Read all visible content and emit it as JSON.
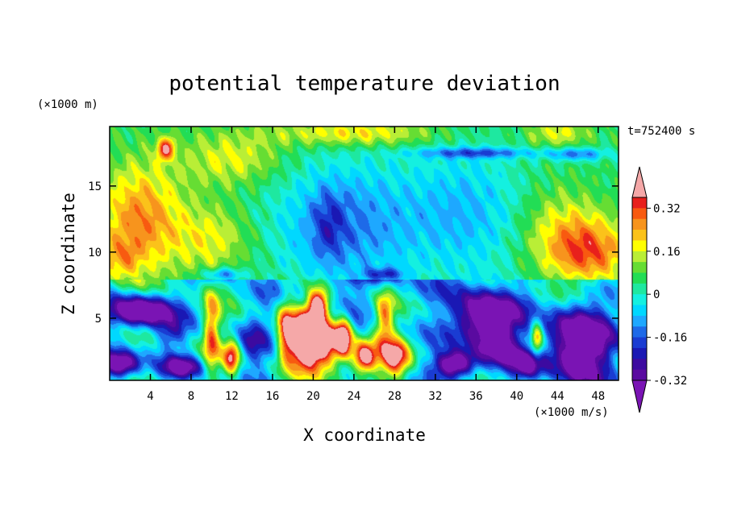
{
  "chart_data": {
    "type": "heatmap",
    "title": "potential temperature deviation",
    "xlabel": "X coordinate",
    "ylabel": "Z coordinate",
    "x_unit": "(×1000 m/s)",
    "y_unit": "(×1000 m)",
    "time_label": "t=752400 s",
    "xlim": [
      0,
      50
    ],
    "ylim": [
      0.3,
      19.5
    ],
    "x_ticks": [
      4,
      8,
      12,
      16,
      20,
      24,
      28,
      32,
      36,
      40,
      44,
      48
    ],
    "y_ticks": [
      5,
      10,
      15
    ],
    "colorbar": {
      "tick_labels": [
        "0.32",
        "0.16",
        "0",
        "-0.16",
        "-0.32"
      ],
      "tick_values": [
        0.32,
        0.16,
        0,
        -0.16,
        -0.32
      ],
      "range": [
        -0.4,
        0.4
      ],
      "levels": [
        {
          "from": 0.36,
          "to": 0.4,
          "color": "#f5a8a8"
        },
        {
          "from": 0.32,
          "to": 0.36,
          "color": "#e8201c"
        },
        {
          "from": 0.28,
          "to": 0.32,
          "color": "#f85a10"
        },
        {
          "from": 0.24,
          "to": 0.28,
          "color": "#f7941d"
        },
        {
          "from": 0.2,
          "to": 0.24,
          "color": "#fbc21a"
        },
        {
          "from": 0.16,
          "to": 0.2,
          "color": "#ffff00"
        },
        {
          "from": 0.12,
          "to": 0.16,
          "color": "#b9ee36"
        },
        {
          "from": 0.08,
          "to": 0.12,
          "color": "#66dd33"
        },
        {
          "from": 0.04,
          "to": 0.08,
          "color": "#22dd55"
        },
        {
          "from": 0,
          "to": 0.04,
          "color": "#1ee8a0"
        },
        {
          "from": -0.04,
          "to": 0,
          "color": "#14f0e0"
        },
        {
          "from": -0.08,
          "to": -0.04,
          "color": "#00d8ff"
        },
        {
          "from": -0.12,
          "to": -0.08,
          "color": "#1ea8ff"
        },
        {
          "from": -0.16,
          "to": -0.12,
          "color": "#1e6ae8"
        },
        {
          "from": -0.2,
          "to": -0.16,
          "color": "#1a3cd2"
        },
        {
          "from": -0.24,
          "to": -0.2,
          "color": "#1a18b4"
        },
        {
          "from": -0.28,
          "to": -0.24,
          "color": "#3c0aa0"
        },
        {
          "from": -0.32,
          "to": -0.28,
          "color": "#5a0aa0"
        },
        {
          "from": -0.4,
          "to": -0.32,
          "color": "#7a14b4"
        }
      ]
    },
    "field": {
      "background_value": 0.05,
      "features": [
        {
          "x": 3,
          "z": 12.5,
          "sx": 4,
          "sz": 4,
          "amp": 0.22
        },
        {
          "x": 1,
          "z": 9.5,
          "sx": 2,
          "sz": 1.5,
          "amp": 0.12
        },
        {
          "x": 12,
          "z": 17,
          "sx": 5,
          "sz": 2,
          "amp": 0.12
        },
        {
          "x": 10,
          "z": 11,
          "sx": 4,
          "sz": 2.5,
          "amp": 0.12
        },
        {
          "x": 24,
          "z": 19,
          "sx": 8,
          "sz": 1,
          "amp": 0.16
        },
        {
          "x": 44,
          "z": 19,
          "sx": 3,
          "sz": 1,
          "amp": 0.12
        },
        {
          "x": 47,
          "z": 10,
          "sx": 4,
          "sz": 2.5,
          "amp": 0.25
        },
        {
          "x": 44,
          "z": 12,
          "sx": 4,
          "sz": 3,
          "amp": 0.1
        },
        {
          "x": 5.5,
          "z": 17.8,
          "sx": 0.8,
          "sz": 0.8,
          "amp": 0.3
        },
        {
          "x": 23,
          "z": 12,
          "sx": 7,
          "sz": 5,
          "amp": -0.18
        },
        {
          "x": 35,
          "z": 13,
          "sx": 6,
          "sz": 5,
          "amp": -0.13
        },
        {
          "x": 21.5,
          "z": 12,
          "sx": 1.5,
          "sz": 2.5,
          "amp": -0.1
        },
        {
          "x": 36,
          "z": 17.5,
          "sx": 6,
          "sz": 0.4,
          "amp": -0.18
        },
        {
          "x": 46,
          "z": 17.4,
          "sx": 3,
          "sz": 0.5,
          "amp": -0.18
        },
        {
          "x": 11,
          "z": 8.3,
          "sx": 2,
          "sz": 0.5,
          "amp": -0.2
        },
        {
          "x": 27,
          "z": 8.3,
          "sx": 2,
          "sz": 0.5,
          "amp": -0.2
        },
        {
          "x": 3,
          "z": 5.5,
          "sx": 3,
          "sz": 1.2,
          "amp": -0.5
        },
        {
          "x": 1,
          "z": 1.5,
          "sx": 2,
          "sz": 1,
          "amp": -0.45
        },
        {
          "x": 7,
          "z": 1.3,
          "sx": 2,
          "sz": 0.8,
          "amp": -0.3
        },
        {
          "x": 37,
          "z": 5,
          "sx": 3,
          "sz": 2,
          "amp": -0.5
        },
        {
          "x": 46,
          "z": 3,
          "sx": 3,
          "sz": 3,
          "amp": -0.5
        },
        {
          "x": 34,
          "z": 1.5,
          "sx": 2,
          "sz": 1,
          "amp": -0.45
        },
        {
          "x": 41,
          "z": 1.5,
          "sx": 1.5,
          "sz": 1,
          "amp": -0.3
        },
        {
          "x": 38,
          "z": 2.5,
          "sx": 2,
          "sz": 1.5,
          "amp": -0.25
        },
        {
          "x": 10,
          "z": 4,
          "sx": 0.8,
          "sz": 3,
          "amp": 0.3
        },
        {
          "x": 12,
          "z": 2,
          "sx": 0.8,
          "sz": 1.3,
          "amp": 0.35
        },
        {
          "x": 17.3,
          "z": 4,
          "sx": 0.9,
          "sz": 2.5,
          "amp": 0.35
        },
        {
          "x": 19,
          "z": 3.5,
          "sx": 1.4,
          "sz": 2,
          "amp": 0.55
        },
        {
          "x": 20.5,
          "z": 6,
          "sx": 1,
          "sz": 1.2,
          "amp": 0.5
        },
        {
          "x": 21,
          "z": 3,
          "sx": 2,
          "sz": 2,
          "amp": 0.5
        },
        {
          "x": 23,
          "z": 3.5,
          "sx": 0.8,
          "sz": 1.5,
          "amp": 0.45
        },
        {
          "x": 25,
          "z": 2,
          "sx": 1.2,
          "sz": 1.2,
          "amp": 0.5
        },
        {
          "x": 28,
          "z": 2,
          "sx": 1.5,
          "sz": 1.5,
          "amp": 0.4
        },
        {
          "x": 27,
          "z": 5,
          "sx": 0.9,
          "sz": 2,
          "amp": 0.3
        },
        {
          "x": 14,
          "z": 3,
          "sx": 1.5,
          "sz": 2,
          "amp": -0.15
        },
        {
          "x": 6,
          "z": 3.8,
          "sx": 1.5,
          "sz": 1,
          "amp": -0.15
        },
        {
          "x": 42,
          "z": 3.5,
          "sx": 0.6,
          "sz": 1.5,
          "amp": 0.3
        }
      ],
      "inversion_z": 7.9
    }
  }
}
